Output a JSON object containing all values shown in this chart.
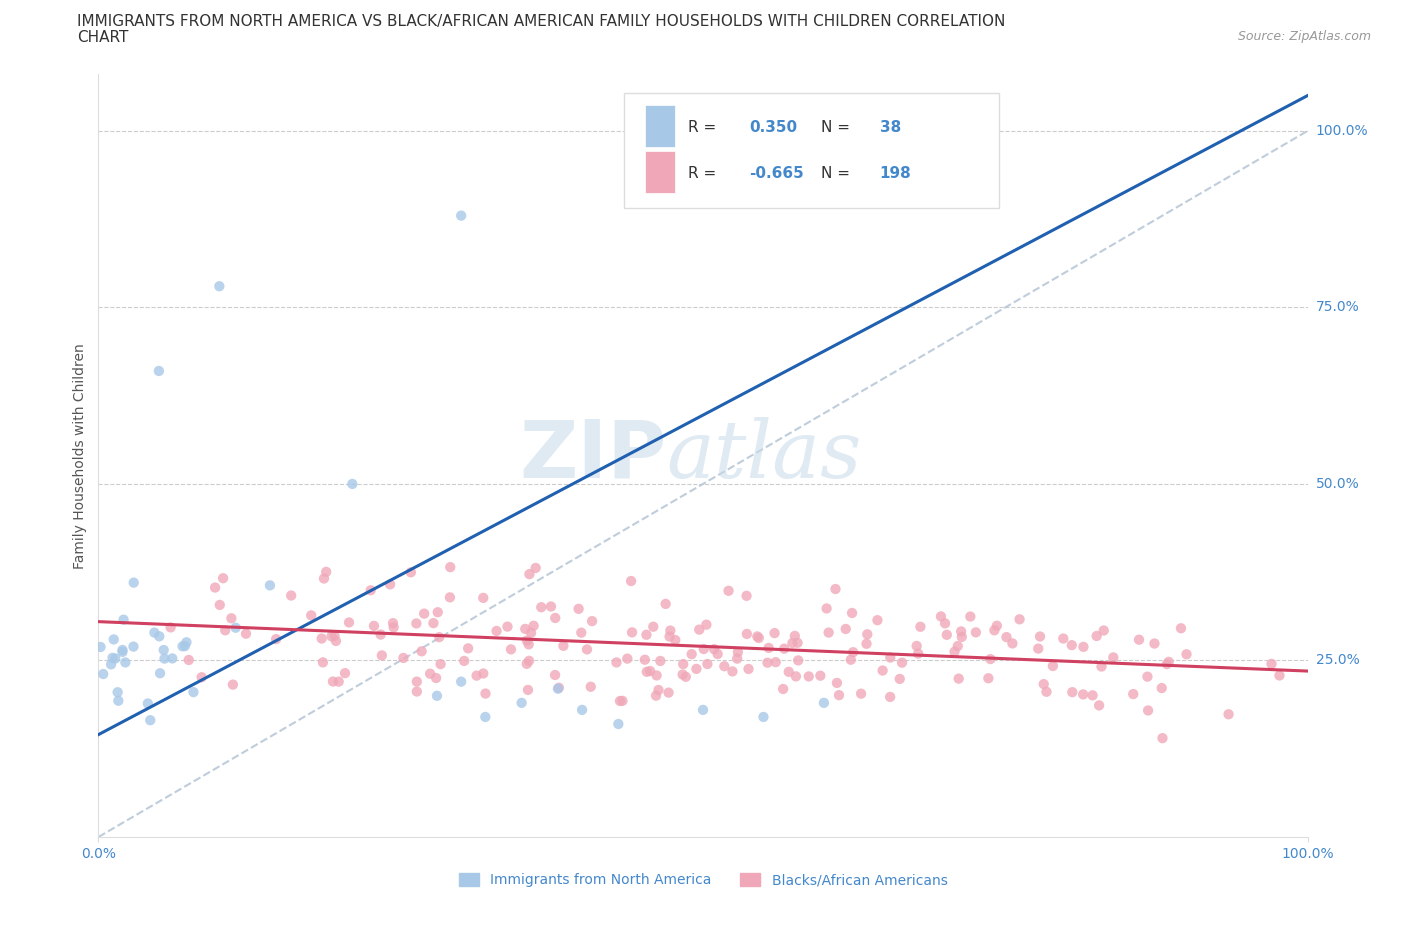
{
  "title_line1": "IMMIGRANTS FROM NORTH AMERICA VS BLACK/AFRICAN AMERICAN FAMILY HOUSEHOLDS WITH CHILDREN CORRELATION",
  "title_line2": "CHART",
  "source": "Source: ZipAtlas.com",
  "ylabel": "Family Households with Children",
  "ytick_labels": [
    "100.0%",
    "75.0%",
    "50.0%",
    "25.0%"
  ],
  "ytick_positions": [
    1.0,
    0.75,
    0.5,
    0.25
  ],
  "xlim": [
    0.0,
    1.0
  ],
  "ylim": [
    0.0,
    1.08
  ],
  "blue_color": "#a8c8e8",
  "pink_color": "#f0a8b8",
  "blue_line_color": "#2060b0",
  "pink_line_color": "#d04060",
  "gray_line_color": "#b8c8d8",
  "legend_label1": "Immigrants from North America",
  "legend_label2": "Blacks/African Americans",
  "blue_R": 0.35,
  "blue_N": 38,
  "pink_R": -0.665,
  "pink_N": 198,
  "blue_trend_x0": 0.0,
  "blue_trend_y0": 0.145,
  "blue_trend_x1": 1.0,
  "blue_trend_y1": 1.05,
  "pink_trend_x0": 0.0,
  "pink_trend_y0": 0.305,
  "pink_trend_x1": 1.0,
  "pink_trend_y1": 0.235
}
